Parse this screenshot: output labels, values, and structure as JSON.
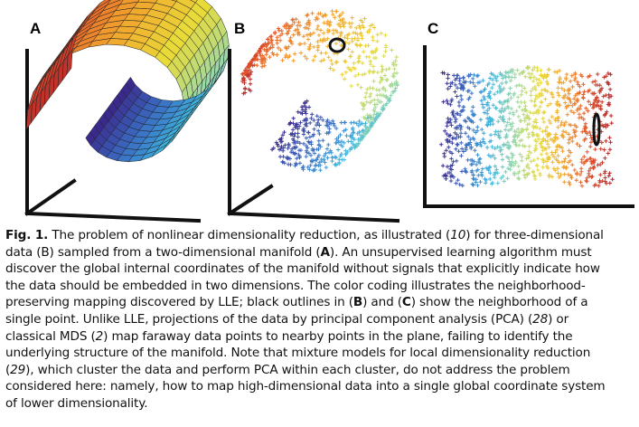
{
  "figure": {
    "panels": [
      {
        "label": "A"
      },
      {
        "label": "B"
      },
      {
        "label": "C"
      }
    ],
    "colors": [
      "#3b2a8e",
      "#3a6fc4",
      "#3fb8e0",
      "#9ed9a6",
      "#e8dc3a",
      "#f2a22c",
      "#e2552a",
      "#b3262a"
    ]
  },
  "caption": {
    "lead": "Fig. 1.",
    "lines": [
      [
        [
          "t",
          " The problem of nonlinear dimensionality reduction, as illustrated ("
        ],
        [
          "i",
          "10"
        ],
        [
          "t",
          ") for three-dimensional"
        ]
      ],
      [
        [
          "t",
          "data (B) sampled from a two-dimensional manifold ("
        ],
        [
          "b",
          "A"
        ],
        [
          "t",
          "). An unsupervised learning algorithm must"
        ]
      ],
      [
        [
          "t",
          "discover the global internal coordinates of the manifold without signals that explicitly indicate how"
        ]
      ],
      [
        [
          "t",
          "the data should be embedded in two dimensions. The color coding illustrates the neighborhood-"
        ]
      ],
      [
        [
          "t",
          "preserving mapping discovered by LLE; black outlines in ("
        ],
        [
          "b",
          "B"
        ],
        [
          "t",
          ") and ("
        ],
        [
          "b",
          "C"
        ],
        [
          "t",
          ") show the neighborhood of a"
        ]
      ],
      [
        [
          "t",
          "single point. Unlike LLE, projections of the data by principal component analysis (PCA) ("
        ],
        [
          "i",
          "28"
        ],
        [
          "t",
          ") or"
        ]
      ],
      [
        [
          "t",
          "classical MDS ("
        ],
        [
          "i",
          "2"
        ],
        [
          "t",
          ") map faraway data points to nearby points in the plane, failing to identify the"
        ]
      ],
      [
        [
          "t",
          "underlying structure of the manifold. Note that mixture models for local dimensionality reduction"
        ]
      ],
      [
        [
          "t",
          "("
        ],
        [
          "i",
          "29"
        ],
        [
          "t",
          "), which cluster the data and perform PCA within each cluster, do not address the problem"
        ]
      ],
      [
        [
          "t",
          "considered here: namely, how to map high-dimensional data into a single global coordinate system"
        ]
      ],
      [
        [
          "t",
          "of lower dimensionality."
        ]
      ]
    ]
  }
}
